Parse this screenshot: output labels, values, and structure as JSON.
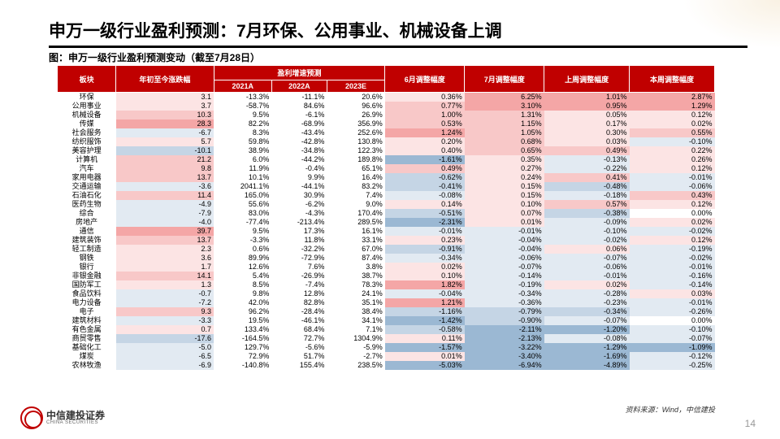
{
  "title": "申万一级行业盈利预测：7月环保、公用事业、机械设备上调",
  "subtitle": "图：申万一级行业盈利预测变动（截至7月28日）",
  "source": "资料来源：Wind，中信建投",
  "pageNum": "14",
  "logo": {
    "cn": "中信建投证券",
    "en": "CHINA SECURITIES"
  },
  "headers": {
    "sector": "板块",
    "ytd": "年初至今涨跌幅",
    "growth": "盈利增速预测",
    "y2021": "2021A",
    "y2022": "2022A",
    "y2023": "2023E",
    "jun": "6月调整幅度",
    "jul": "7月调整幅度",
    "lastWeek": "上周调整幅度",
    "thisWeek": "本周调整幅度"
  },
  "colors": {
    "posStrong": "#f4a6a6",
    "posMed": "#f8c8c8",
    "posWeak": "#fce4e4",
    "negStrong": "#9bb8d3",
    "negMed": "#c5d5e5",
    "negWeak": "#e2eaf2",
    "neutral": "#ffffff"
  },
  "rows": [
    {
      "s": "环保",
      "ytd": 3.1,
      "a": -13.3,
      "b": -11.1,
      "c": 20.6,
      "jun": 0.36,
      "jul": 6.25,
      "lw": 1.01,
      "tw": 2.87
    },
    {
      "s": "公用事业",
      "ytd": 3.7,
      "a": -58.7,
      "b": 84.6,
      "c": 96.6,
      "jun": 0.77,
      "jul": 3.1,
      "lw": 0.95,
      "tw": 1.29
    },
    {
      "s": "机械设备",
      "ytd": 10.3,
      "a": 9.5,
      "b": -6.1,
      "c": 26.9,
      "jun": 1.0,
      "jul": 1.31,
      "lw": 0.05,
      "tw": 0.12
    },
    {
      "s": "传媒",
      "ytd": 28.3,
      "a": 82.2,
      "b": -68.9,
      "c": 356.9,
      "jun": 0.53,
      "jul": 1.15,
      "lw": 0.17,
      "tw": 0.02
    },
    {
      "s": "社会服务",
      "ytd": -6.7,
      "a": 8.3,
      "b": -43.4,
      "c": 252.6,
      "jun": 1.24,
      "jul": 1.05,
      "lw": 0.3,
      "tw": 0.55
    },
    {
      "s": "纺织服饰",
      "ytd": 5.7,
      "a": 59.8,
      "b": -42.8,
      "c": 130.8,
      "jun": 0.2,
      "jul": 0.68,
      "lw": 0.03,
      "tw": -0.1
    },
    {
      "s": "美容护理",
      "ytd": -10.1,
      "a": 38.9,
      "b": -34.8,
      "c": 122.3,
      "jun": 0.4,
      "jul": 0.65,
      "lw": 0.49,
      "tw": 0.22
    },
    {
      "s": "计算机",
      "ytd": 21.2,
      "a": 6.0,
      "b": -44.2,
      "c": 189.8,
      "jun": -1.61,
      "jul": 0.35,
      "lw": -0.13,
      "tw": 0.26
    },
    {
      "s": "汽车",
      "ytd": 9.8,
      "a": 11.9,
      "b": -0.4,
      "c": 65.1,
      "jun": 0.49,
      "jul": 0.27,
      "lw": -0.22,
      "tw": 0.12
    },
    {
      "s": "家用电器",
      "ytd": 13.7,
      "a": 10.1,
      "b": 9.9,
      "c": 16.4,
      "jun": -0.62,
      "jul": 0.24,
      "lw": 0.41,
      "tw": -0.01
    },
    {
      "s": "交通运输",
      "ytd": -3.6,
      "a": 2041.1,
      "b": -44.1,
      "c": 83.2,
      "jun": -0.41,
      "jul": 0.15,
      "lw": -0.48,
      "tw": -0.06
    },
    {
      "s": "石油石化",
      "ytd": 11.4,
      "a": 165.0,
      "b": 30.9,
      "c": 7.4,
      "jun": -0.08,
      "jul": 0.15,
      "lw": -0.18,
      "tw": 0.43
    },
    {
      "s": "医药生物",
      "ytd": -4.9,
      "a": 55.6,
      "b": -6.2,
      "c": 9.0,
      "jun": 0.14,
      "jul": 0.1,
      "lw": 0.57,
      "tw": 0.12
    },
    {
      "s": "综合",
      "ytd": -7.9,
      "a": 83.0,
      "b": -4.3,
      "c": 170.4,
      "jun": -0.51,
      "jul": 0.07,
      "lw": -0.38,
      "tw": 0.0
    },
    {
      "s": "房地产",
      "ytd": -4.0,
      "a": -77.4,
      "b": -213.4,
      "c": 289.5,
      "jun": -2.31,
      "jul": 0.01,
      "lw": -0.09,
      "tw": 0.02
    },
    {
      "s": "通信",
      "ytd": 39.7,
      "a": 9.5,
      "b": 17.3,
      "c": 16.1,
      "jun": -0.01,
      "jul": -0.01,
      "lw": -0.1,
      "tw": -0.02
    },
    {
      "s": "建筑装饰",
      "ytd": 13.7,
      "a": -3.3,
      "b": 11.8,
      "c": 33.1,
      "jun": 0.23,
      "jul": -0.04,
      "lw": -0.02,
      "tw": 0.12
    },
    {
      "s": "轻工制造",
      "ytd": 2.3,
      "a": 0.6,
      "b": -32.2,
      "c": 67.0,
      "jun": -0.91,
      "jul": -0.04,
      "lw": 0.06,
      "tw": -0.19
    },
    {
      "s": "钢铁",
      "ytd": 3.6,
      "a": 89.9,
      "b": -72.9,
      "c": 87.4,
      "jun": -0.34,
      "jul": -0.06,
      "lw": -0.07,
      "tw": -0.02
    },
    {
      "s": "银行",
      "ytd": 1.7,
      "a": 12.6,
      "b": 7.6,
      "c": 3.8,
      "jun": 0.02,
      "jul": -0.07,
      "lw": -0.06,
      "tw": -0.01
    },
    {
      "s": "非银金融",
      "ytd": 14.1,
      "a": 5.4,
      "b": -26.9,
      "c": 38.7,
      "jun": 0.1,
      "jul": -0.14,
      "lw": -0.01,
      "tw": -0.16
    },
    {
      "s": "国防军工",
      "ytd": 1.3,
      "a": 8.5,
      "b": -7.4,
      "c": 78.3,
      "jun": 1.82,
      "jul": -0.19,
      "lw": 0.02,
      "tw": -0.14
    },
    {
      "s": "食品饮料",
      "ytd": -0.7,
      "a": 9.8,
      "b": 12.8,
      "c": 24.1,
      "jun": -0.04,
      "jul": -0.34,
      "lw": -0.28,
      "tw": 0.03
    },
    {
      "s": "电力设备",
      "ytd": -7.2,
      "a": 42.0,
      "b": 82.8,
      "c": 35.1,
      "jun": 1.21,
      "jul": -0.36,
      "lw": -0.23,
      "tw": -0.01
    },
    {
      "s": "电子",
      "ytd": 9.3,
      "a": 96.2,
      "b": -28.4,
      "c": 38.4,
      "jun": -1.16,
      "jul": -0.79,
      "lw": -0.34,
      "tw": -0.26
    },
    {
      "s": "建筑材料",
      "ytd": -3.3,
      "a": 19.5,
      "b": -46.1,
      "c": 34.1,
      "jun": -1.42,
      "jul": -0.9,
      "lw": -0.07,
      "tw": 0.0
    },
    {
      "s": "有色金属",
      "ytd": 0.7,
      "a": 133.4,
      "b": 68.4,
      "c": 7.1,
      "jun": -0.58,
      "jul": -2.11,
      "lw": -1.2,
      "tw": -0.1
    },
    {
      "s": "商贸零售",
      "ytd": -17.6,
      "a": -164.5,
      "b": 72.7,
      "c": 1304.9,
      "jun": 0.11,
      "jul": -2.13,
      "lw": -0.08,
      "tw": -0.07
    },
    {
      "s": "基础化工",
      "ytd": -5.0,
      "a": 129.7,
      "b": -5.6,
      "c": -5.9,
      "jun": -1.57,
      "jul": -3.22,
      "lw": -1.29,
      "tw": -1.09
    },
    {
      "s": "煤炭",
      "ytd": -6.5,
      "a": 72.9,
      "b": 51.7,
      "c": -2.7,
      "jun": 0.01,
      "jul": -3.4,
      "lw": -1.69,
      "tw": -0.12
    },
    {
      "s": "农林牧渔",
      "ytd": -6.9,
      "a": -140.8,
      "b": 155.4,
      "c": 238.5,
      "jun": -5.03,
      "jul": -6.94,
      "lw": -4.89,
      "tw": -0.25
    }
  ]
}
